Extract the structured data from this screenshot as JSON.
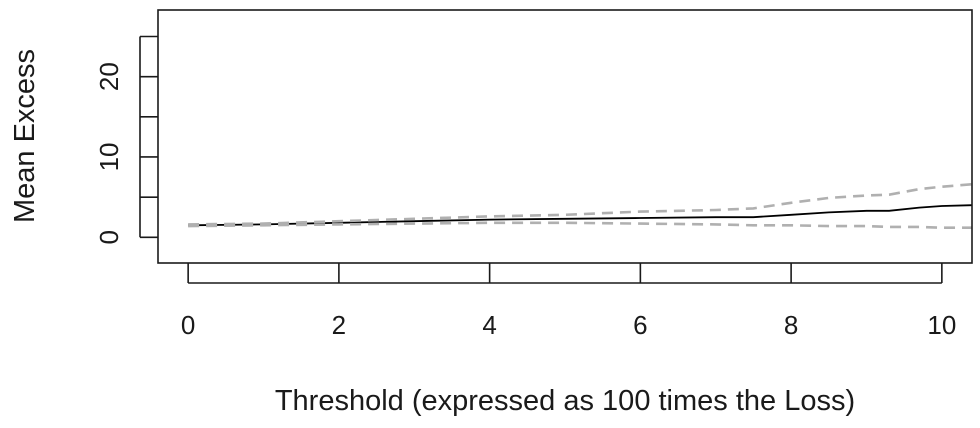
{
  "chart_data": {
    "type": "line",
    "title": "",
    "xlabel": "Threshold (expressed as 100 times the Loss)",
    "ylabel": "Mean Excess",
    "xlim": [
      -0.4,
      10.4
    ],
    "ylim": [
      -3.2,
      28.3
    ],
    "x_ticks": [
      "0",
      "2",
      "4",
      "6",
      "8",
      "10"
    ],
    "y_ticks": [
      "0",
      "10",
      "20"
    ],
    "y_minor_ticks": [
      5,
      15,
      25
    ],
    "grid": false,
    "series": [
      {
        "style": "solid",
        "color": "#000000",
        "x": [
          0,
          1,
          2,
          3,
          4,
          5,
          6,
          7,
          7.5,
          8,
          8.5,
          9,
          9.3,
          9.7,
          10,
          10.4
        ],
        "y": [
          1.5,
          1.6,
          1.8,
          2.0,
          2.2,
          2.3,
          2.4,
          2.5,
          2.5,
          2.8,
          3.1,
          3.3,
          3.3,
          3.7,
          3.9,
          4.0
        ]
      },
      {
        "style": "dashed",
        "color": "#b0b0b0",
        "x": [
          0,
          1,
          2,
          3,
          4,
          5,
          6,
          7,
          7.5,
          8,
          8.5,
          9,
          9.3,
          9.7,
          10,
          10.4
        ],
        "y": [
          1.6,
          1.7,
          2.0,
          2.3,
          2.6,
          2.8,
          3.2,
          3.4,
          3.6,
          4.3,
          4.9,
          5.2,
          5.3,
          6.0,
          6.3,
          6.6
        ]
      },
      {
        "style": "dashed",
        "color": "#b0b0b0",
        "x": [
          0,
          1,
          2,
          3,
          4,
          5,
          6,
          7,
          7.5,
          8,
          8.5,
          9,
          9.3,
          9.7,
          10,
          10.4
        ],
        "y": [
          1.4,
          1.5,
          1.6,
          1.7,
          1.8,
          1.8,
          1.7,
          1.6,
          1.5,
          1.5,
          1.4,
          1.4,
          1.3,
          1.3,
          1.2,
          1.2
        ]
      }
    ]
  }
}
